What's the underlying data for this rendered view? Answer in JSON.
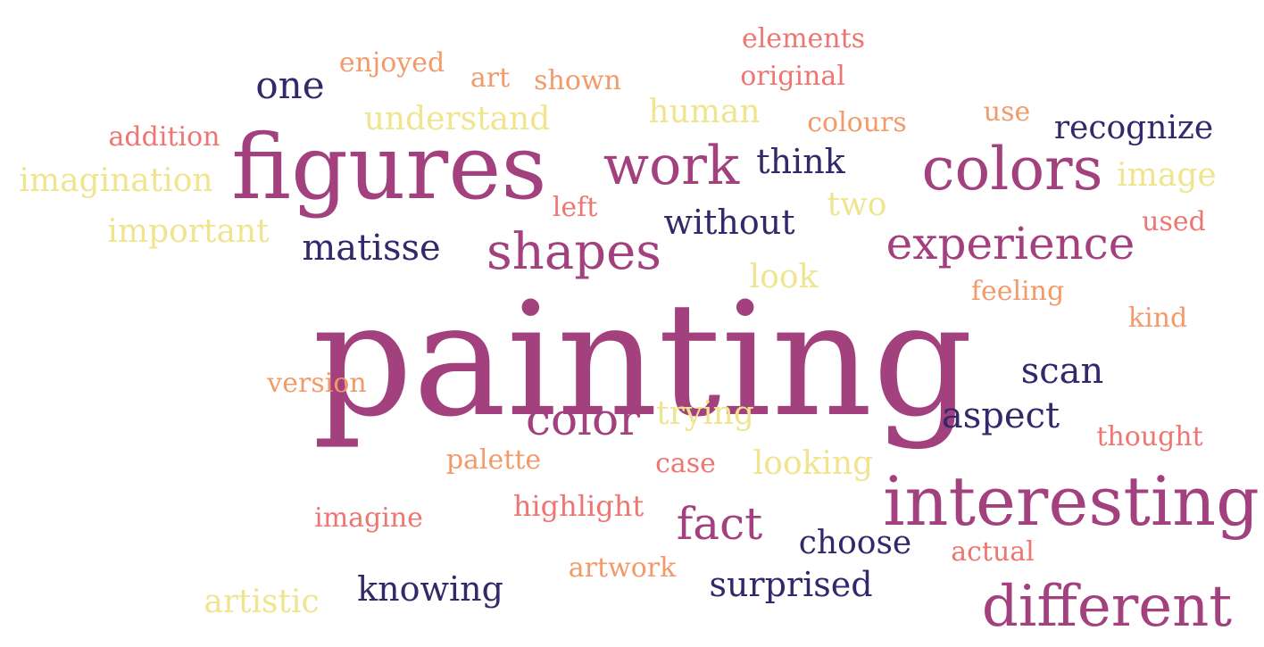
{
  "palette": {
    "navy": "#32296b",
    "magenta": "#a3417f",
    "coral": "#ee7672",
    "orange": "#f39a6a",
    "yellow": "#efe58f"
  },
  "words": [
    {
      "text": "painting",
      "color": "magenta"
    },
    {
      "text": "figures",
      "color": "magenta"
    },
    {
      "text": "interesting",
      "color": "magenta"
    },
    {
      "text": "colors",
      "color": "magenta"
    },
    {
      "text": "work",
      "color": "magenta"
    },
    {
      "text": "different",
      "color": "magenta"
    },
    {
      "text": "shapes",
      "color": "magenta"
    },
    {
      "text": "experience",
      "color": "magenta"
    },
    {
      "text": "color",
      "color": "magenta"
    },
    {
      "text": "fact",
      "color": "magenta"
    },
    {
      "text": "one",
      "color": "navy"
    },
    {
      "text": "matisse",
      "color": "navy"
    },
    {
      "text": "without",
      "color": "navy"
    },
    {
      "text": "think",
      "color": "navy"
    },
    {
      "text": "recognize",
      "color": "navy"
    },
    {
      "text": "scan",
      "color": "navy"
    },
    {
      "text": "aspect",
      "color": "navy"
    },
    {
      "text": "choose",
      "color": "navy"
    },
    {
      "text": "knowing",
      "color": "navy"
    },
    {
      "text": "surprised",
      "color": "navy"
    },
    {
      "text": "elements",
      "color": "coral"
    },
    {
      "text": "original",
      "color": "coral"
    },
    {
      "text": "addition",
      "color": "coral"
    },
    {
      "text": "left",
      "color": "coral"
    },
    {
      "text": "used",
      "color": "coral"
    },
    {
      "text": "thought",
      "color": "coral"
    },
    {
      "text": "case",
      "color": "coral"
    },
    {
      "text": "imagine",
      "color": "coral"
    },
    {
      "text": "highlight",
      "color": "coral"
    },
    {
      "text": "actual",
      "color": "coral"
    },
    {
      "text": "enjoyed",
      "color": "orange"
    },
    {
      "text": "art",
      "color": "orange"
    },
    {
      "text": "shown",
      "color": "orange"
    },
    {
      "text": "colours",
      "color": "orange"
    },
    {
      "text": "use",
      "color": "orange"
    },
    {
      "text": "feeling",
      "color": "orange"
    },
    {
      "text": "kind",
      "color": "orange"
    },
    {
      "text": "version",
      "color": "orange"
    },
    {
      "text": "palette",
      "color": "orange"
    },
    {
      "text": "artwork",
      "color": "orange"
    },
    {
      "text": "understand",
      "color": "yellow"
    },
    {
      "text": "human",
      "color": "yellow"
    },
    {
      "text": "imagination",
      "color": "yellow"
    },
    {
      "text": "important",
      "color": "yellow"
    },
    {
      "text": "image",
      "color": "yellow"
    },
    {
      "text": "two",
      "color": "yellow"
    },
    {
      "text": "look",
      "color": "yellow"
    },
    {
      "text": "trying",
      "color": "yellow"
    },
    {
      "text": "looking",
      "color": "yellow"
    },
    {
      "text": "artistic",
      "color": "yellow"
    }
  ]
}
